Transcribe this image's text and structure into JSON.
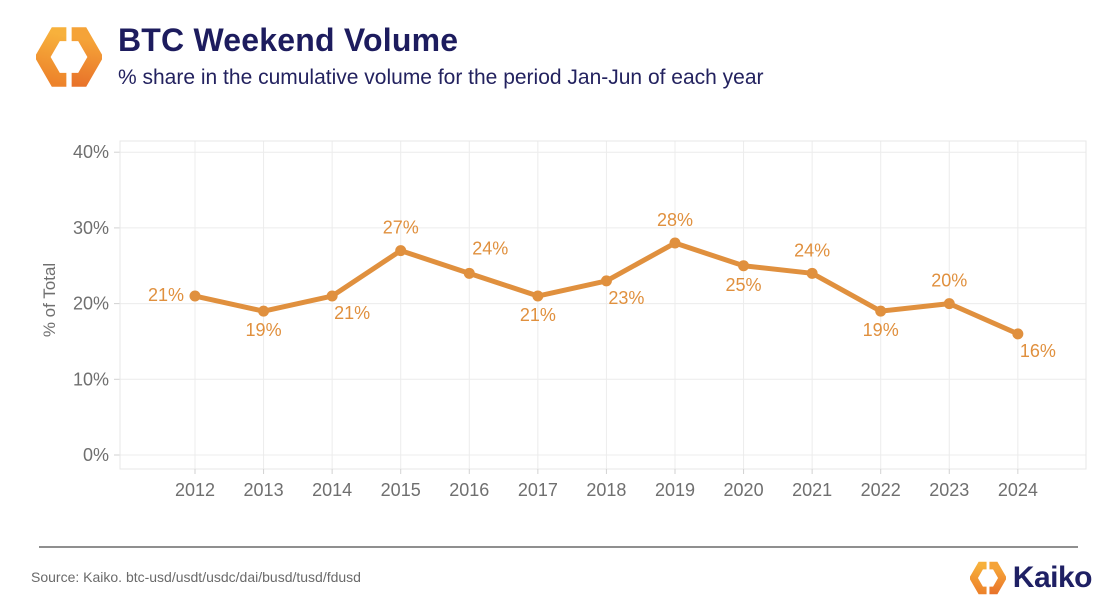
{
  "header": {
    "title": "BTC Weekend Volume",
    "subtitle": "% share in the cumulative volume for the period Jan-Jun of each year"
  },
  "chart_data": {
    "type": "line",
    "categories": [
      "2012",
      "2013",
      "2014",
      "2015",
      "2016",
      "2017",
      "2018",
      "2019",
      "2020",
      "2021",
      "2022",
      "2023",
      "2024"
    ],
    "values": [
      21,
      19,
      21,
      27,
      24,
      21,
      23,
      28,
      25,
      24,
      19,
      20,
      16
    ],
    "data_labels": [
      "21%",
      "19%",
      "21%",
      "27%",
      "24%",
      "21%",
      "23%",
      "28%",
      "25%",
      "24%",
      "19%",
      "20%",
      "16%"
    ],
    "label_positions": [
      "left",
      "below",
      "below-right",
      "above",
      "above-right",
      "below",
      "below-right",
      "above",
      "below",
      "above",
      "below",
      "above",
      "below-right"
    ],
    "title": "BTC Weekend Volume",
    "xlabel": "",
    "ylabel": "% of Total",
    "ylim": [
      0,
      40
    ],
    "yticks": [
      0,
      10,
      20,
      30,
      40
    ],
    "ytick_labels": [
      "0%",
      "10%",
      "20%",
      "30%",
      "40%"
    ],
    "grid": true,
    "legend": "none",
    "line_color": "#E0903E"
  },
  "footer": {
    "source": "Source: Kaiko. btc-usd/usdt/usdc/dai/busd/tusd/fdusd",
    "brand": "Kaiko"
  },
  "colors": {
    "title_navy": "#1D1C5E",
    "accent_orange": "#E0903E",
    "axis_text": "#6F6F6F",
    "gridline": "#ECECEC",
    "plot_border": "#E7E7E7",
    "tick": "#D2D2D2",
    "divider_gray": "#8F8F8F",
    "brand_navy": "#1F2064",
    "logo_yellow": "#F7AE3C",
    "logo_orange": "#E8722A"
  }
}
